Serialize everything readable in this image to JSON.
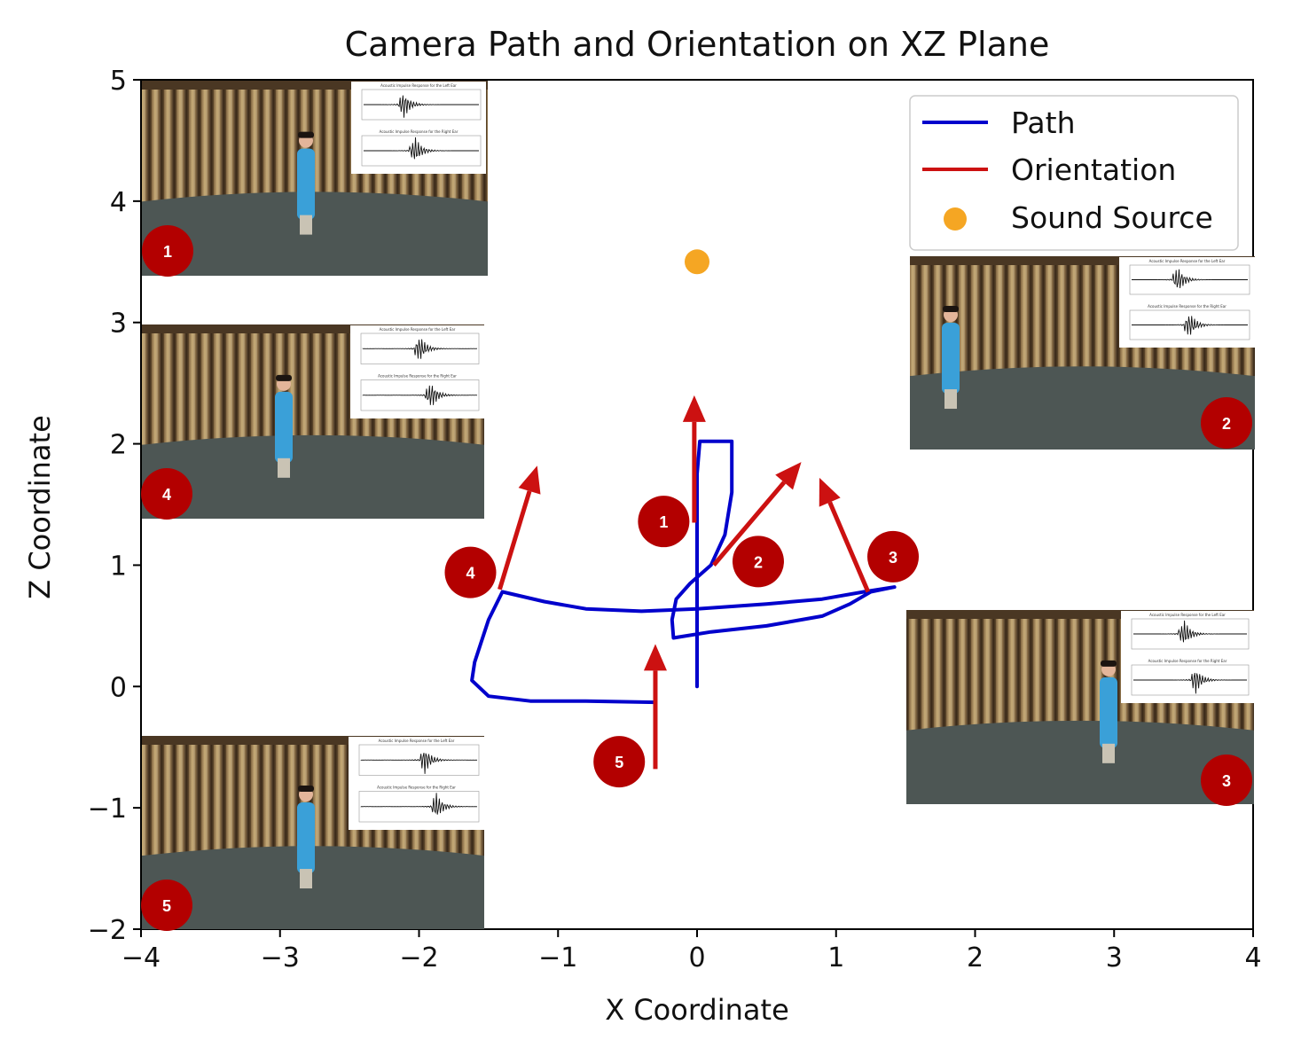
{
  "chart_data": {
    "type": "line",
    "title": "Camera Path and Orientation on XZ Plane",
    "xlabel": "X Coordinate",
    "ylabel": "Z Coordinate",
    "xlim": [
      -4,
      4
    ],
    "ylim": [
      -2,
      5
    ],
    "xticks": [
      -4,
      -3,
      -2,
      -1,
      0,
      1,
      2,
      3,
      4
    ],
    "yticks": [
      -2,
      -1,
      0,
      1,
      2,
      3,
      4,
      5
    ],
    "xtick_labels": [
      "−4",
      "−3",
      "−2",
      "−1",
      "0",
      "1",
      "2",
      "3",
      "4"
    ],
    "ytick_labels": [
      "−2",
      "−1",
      "0",
      "1",
      "2",
      "3",
      "4",
      "5"
    ],
    "grid": false,
    "legend_position": "top-right",
    "legend": [
      {
        "label": "Path",
        "kind": "line",
        "color": "#0000cc"
      },
      {
        "label": "Orientation",
        "kind": "line",
        "color": "#cc1111"
      },
      {
        "label": "Sound Source",
        "kind": "marker",
        "color": "#f5a623"
      }
    ],
    "series": [
      {
        "name": "Path",
        "color": "#0000cc",
        "points": [
          [
            0.0,
            0.0
          ],
          [
            0.0,
            1.4
          ],
          [
            0.0,
            1.75
          ],
          [
            0.02,
            2.02
          ],
          [
            0.25,
            2.02
          ],
          [
            0.25,
            1.6
          ],
          [
            0.2,
            1.25
          ],
          [
            0.1,
            1.0
          ],
          [
            -0.05,
            0.85
          ],
          [
            -0.15,
            0.72
          ],
          [
            -0.18,
            0.55
          ],
          [
            -0.17,
            0.4
          ],
          [
            0.1,
            0.45
          ],
          [
            0.5,
            0.5
          ],
          [
            0.9,
            0.58
          ],
          [
            1.1,
            0.68
          ],
          [
            1.25,
            0.78
          ],
          [
            1.42,
            0.82
          ],
          [
            1.2,
            0.78
          ],
          [
            0.9,
            0.72
          ],
          [
            0.5,
            0.68
          ],
          [
            0.0,
            0.64
          ],
          [
            -0.4,
            0.62
          ],
          [
            -0.8,
            0.64
          ],
          [
            -1.1,
            0.7
          ],
          [
            -1.4,
            0.78
          ],
          [
            -1.5,
            0.55
          ],
          [
            -1.6,
            0.2
          ],
          [
            -1.62,
            0.05
          ],
          [
            -1.5,
            -0.08
          ],
          [
            -1.2,
            -0.12
          ],
          [
            -0.8,
            -0.12
          ],
          [
            -0.3,
            -0.13
          ]
        ]
      }
    ],
    "orientation_arrows": [
      {
        "label": "1",
        "x0": -0.02,
        "z0": 1.35,
        "x1": -0.02,
        "z1": 2.4
      },
      {
        "label": "2",
        "x0": 0.12,
        "z0": 1.0,
        "x1": 0.75,
        "z1": 1.85
      },
      {
        "label": "3",
        "x0": 1.23,
        "z0": 0.78,
        "x1": 0.88,
        "z1": 1.72
      },
      {
        "label": "4",
        "x0": -1.42,
        "z0": 0.8,
        "x1": -1.15,
        "z1": 1.82
      },
      {
        "label": "5",
        "x0": -0.3,
        "z0": -0.68,
        "x1": -0.3,
        "z1": 0.35
      }
    ],
    "path_badges": [
      {
        "label": "1",
        "x": -0.24,
        "z": 1.36
      },
      {
        "label": "2",
        "x": 0.44,
        "z": 1.03
      },
      {
        "label": "3",
        "x": 1.41,
        "z": 1.07
      },
      {
        "label": "4",
        "x": -1.63,
        "z": 0.94
      },
      {
        "label": "5",
        "x": -0.56,
        "z": -0.62
      }
    ],
    "sound_source": {
      "x": 0.0,
      "z": 3.5,
      "color": "#f5a623"
    }
  },
  "insets": [
    {
      "label": "1",
      "plot_titles": [
        "Acoustic Impulse Response for the Left Ear",
        "Acoustic Impulse Response for the Right Ear"
      ]
    },
    {
      "label": "2",
      "plot_titles": [
        "Acoustic Impulse Response for the Left Ear",
        "Acoustic Impulse Response for the Right Ear"
      ]
    },
    {
      "label": "3",
      "plot_titles": [
        "Acoustic Impulse Response for the Left Ear",
        "Acoustic Impulse Response for the Right Ear"
      ]
    },
    {
      "label": "4",
      "plot_titles": [
        "Acoustic Impulse Response for the Left Ear",
        "Acoustic Impulse Response for the Right Ear"
      ]
    },
    {
      "label": "5",
      "plot_titles": [
        "Acoustic Impulse Response for the Left Ear",
        "Acoustic Impulse Response for the Right Ear"
      ]
    }
  ]
}
